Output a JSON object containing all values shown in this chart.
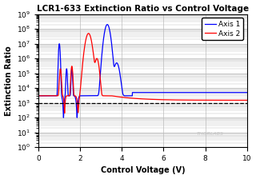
{
  "title": "LCR1-633 Extinction Ratio vs Control Voltage",
  "xlabel": "Control Voltage (V)",
  "ylabel": "Extinction Ratio",
  "xlim": [
    0,
    10
  ],
  "ylim": [
    1,
    1000000000.0
  ],
  "dashed_line_y": 1000,
  "legend": [
    "Axis 1",
    "Axis 2"
  ],
  "axis1_color": "#0000FF",
  "axis2_color": "#FF0000",
  "watermark": "THORLABS",
  "background_color": "#FFFFFF",
  "grid_color": "#BBBBBB"
}
